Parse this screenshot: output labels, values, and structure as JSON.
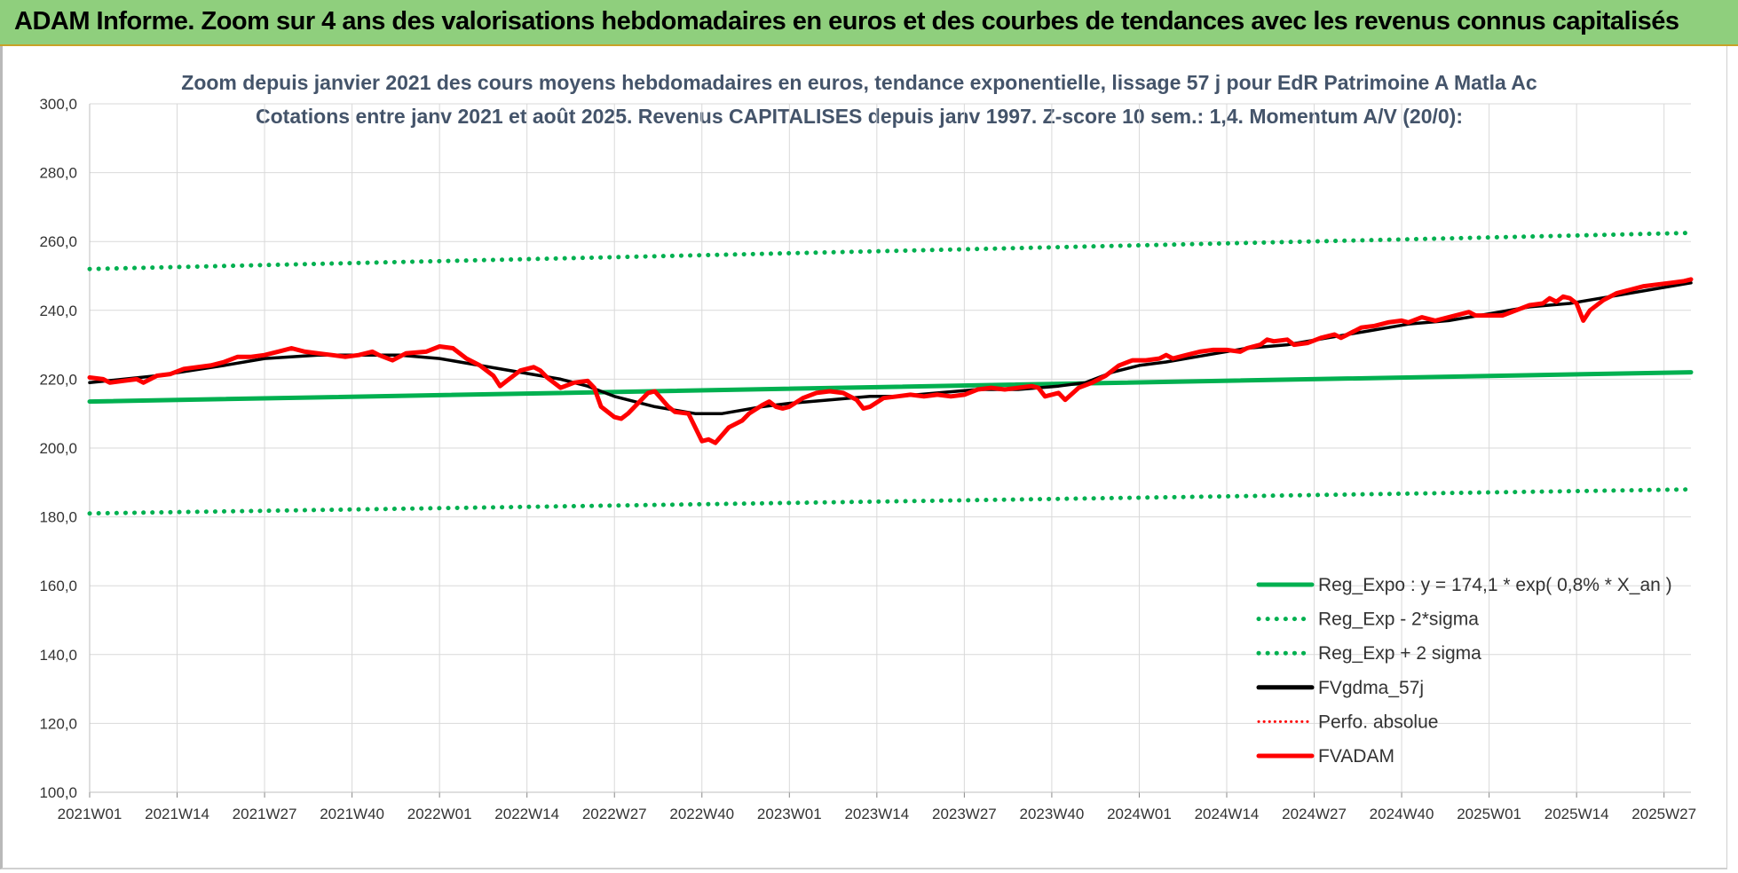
{
  "banner": {
    "title": "ADAM Informe. Zoom sur 4 ans des valorisations hebdomadaires en euros et des courbes de tendances avec les revenus connus capitalisés"
  },
  "chart_data": {
    "type": "line",
    "title": "Zoom depuis janvier 2021 des cours moyens hebdomadaires en euros, tendance exponentielle, lissage 57 j pour EdR Patrimoine A Matla Ac",
    "subtitle": "Cotations entre janv 2021 et août 2025. Revenus CAPITALISES depuis janv 1997. Z-score 10 sem.: 1,4. Momentum A/V (20/0):",
    "ylim": [
      100,
      300
    ],
    "yticks": [
      "300,0",
      "280,0",
      "260,0",
      "240,0",
      "220,0",
      "200,0",
      "180,0",
      "160,0",
      "140,0",
      "120,0",
      "100,0"
    ],
    "xticks": [
      {
        "label": "2021W01",
        "week": 0
      },
      {
        "label": "2021W14",
        "week": 13
      },
      {
        "label": "2021W27",
        "week": 26
      },
      {
        "label": "2021W40",
        "week": 39
      },
      {
        "label": "2022W01",
        "week": 52
      },
      {
        "label": "2022W14",
        "week": 65
      },
      {
        "label": "2022W27",
        "week": 78
      },
      {
        "label": "2022W40",
        "week": 91
      },
      {
        "label": "2023W01",
        "week": 104
      },
      {
        "label": "2023W14",
        "week": 117
      },
      {
        "label": "2023W27",
        "week": 130
      },
      {
        "label": "2023W40",
        "week": 143
      },
      {
        "label": "2024W01",
        "week": 156
      },
      {
        "label": "2024W14",
        "week": 169
      },
      {
        "label": "2024W27",
        "week": 182
      },
      {
        "label": "2024W40",
        "week": 195
      },
      {
        "label": "2025W01",
        "week": 208
      },
      {
        "label": "2025W14",
        "week": 221
      },
      {
        "label": "2025W27",
        "week": 234
      }
    ],
    "x_last_week": 238,
    "series": [
      {
        "name": "Reg_Expo : y = 174,1 * exp( 0,8% *  X_an )",
        "color": "#00b050",
        "style": "solid",
        "points": [
          [
            0,
            213.5
          ],
          [
            238,
            222.0
          ]
        ]
      },
      {
        "name": "Reg_Exp - 2*sigma",
        "color": "#00b050",
        "style": "dotted",
        "points": [
          [
            0,
            181.0
          ],
          [
            238,
            188.0
          ]
        ]
      },
      {
        "name": "Reg_Exp + 2 sigma",
        "color": "#00b050",
        "style": "dotted",
        "points": [
          [
            0,
            252.0
          ],
          [
            238,
            262.5
          ]
        ]
      },
      {
        "name": "FVgdma_57j",
        "color": "#000000",
        "style": "solid",
        "points": [
          [
            0,
            219
          ],
          [
            10,
            221
          ],
          [
            20,
            224
          ],
          [
            26,
            226
          ],
          [
            34,
            227
          ],
          [
            40,
            227
          ],
          [
            46,
            227
          ],
          [
            52,
            226
          ],
          [
            58,
            224
          ],
          [
            64,
            222
          ],
          [
            70,
            220
          ],
          [
            74,
            218
          ],
          [
            78,
            215
          ],
          [
            84,
            212
          ],
          [
            90,
            210
          ],
          [
            94,
            210
          ],
          [
            100,
            212
          ],
          [
            104,
            213
          ],
          [
            110,
            214
          ],
          [
            116,
            215
          ],
          [
            120,
            215
          ],
          [
            126,
            216
          ],
          [
            132,
            217
          ],
          [
            138,
            217
          ],
          [
            144,
            218
          ],
          [
            148,
            219
          ],
          [
            152,
            222
          ],
          [
            156,
            224
          ],
          [
            160,
            225
          ],
          [
            166,
            227
          ],
          [
            172,
            229
          ],
          [
            178,
            230
          ],
          [
            184,
            232
          ],
          [
            190,
            234
          ],
          [
            196,
            236
          ],
          [
            202,
            237
          ],
          [
            208,
            239
          ],
          [
            214,
            241
          ],
          [
            220,
            242
          ],
          [
            226,
            244
          ],
          [
            232,
            246
          ],
          [
            238,
            248
          ]
        ]
      },
      {
        "name": "Perfo. absolue",
        "color": "#ff0000",
        "style": "dotted",
        "points": []
      },
      {
        "name": "FVADAM",
        "color": "#ff0000",
        "style": "solid",
        "points": [
          [
            0,
            220.5
          ],
          [
            2,
            220
          ],
          [
            3,
            219
          ],
          [
            5,
            219.5
          ],
          [
            7,
            220
          ],
          [
            8,
            219
          ],
          [
            10,
            221
          ],
          [
            12,
            221.5
          ],
          [
            14,
            223
          ],
          [
            16,
            223.5
          ],
          [
            18,
            224
          ],
          [
            20,
            225
          ],
          [
            22,
            226.5
          ],
          [
            24,
            226.5
          ],
          [
            26,
            227
          ],
          [
            28,
            228
          ],
          [
            30,
            229
          ],
          [
            32,
            228
          ],
          [
            34,
            227.5
          ],
          [
            36,
            227
          ],
          [
            38,
            226.5
          ],
          [
            40,
            227
          ],
          [
            42,
            228
          ],
          [
            43,
            227
          ],
          [
            45,
            225.5
          ],
          [
            47,
            227.5
          ],
          [
            50,
            228
          ],
          [
            52,
            229.5
          ],
          [
            54,
            229
          ],
          [
            56,
            226
          ],
          [
            58,
            224
          ],
          [
            60,
            221
          ],
          [
            61,
            218
          ],
          [
            62,
            219.5
          ],
          [
            64,
            222.5
          ],
          [
            66,
            223.5
          ],
          [
            67,
            222.5
          ],
          [
            68,
            220.5
          ],
          [
            70,
            217.5
          ],
          [
            72,
            219
          ],
          [
            74,
            219.5
          ],
          [
            75,
            217.5
          ],
          [
            76,
            212
          ],
          [
            78,
            209
          ],
          [
            79,
            208.5
          ],
          [
            80,
            210
          ],
          [
            82,
            214
          ],
          [
            83,
            216
          ],
          [
            84,
            216.5
          ],
          [
            86,
            212
          ],
          [
            87,
            210.5
          ],
          [
            89,
            210
          ],
          [
            91,
            202
          ],
          [
            92,
            202.5
          ],
          [
            93,
            201.5
          ],
          [
            95,
            206
          ],
          [
            97,
            208
          ],
          [
            98,
            210
          ],
          [
            100,
            212.5
          ],
          [
            101,
            213.5
          ],
          [
            102,
            212
          ],
          [
            103,
            211.5
          ],
          [
            104,
            212
          ],
          [
            106,
            214.5
          ],
          [
            108,
            216
          ],
          [
            110,
            216.5
          ],
          [
            112,
            216
          ],
          [
            114,
            214
          ],
          [
            115,
            211.5
          ],
          [
            116,
            212
          ],
          [
            118,
            214.5
          ],
          [
            120,
            215
          ],
          [
            122,
            215.5
          ],
          [
            124,
            215
          ],
          [
            126,
            215.5
          ],
          [
            128,
            215
          ],
          [
            130,
            215.5
          ],
          [
            132,
            217
          ],
          [
            134,
            217.5
          ],
          [
            136,
            217
          ],
          [
            138,
            217.5
          ],
          [
            140,
            218
          ],
          [
            141,
            217.5
          ],
          [
            142,
            215
          ],
          [
            144,
            216
          ],
          [
            145,
            214
          ],
          [
            147,
            217.5
          ],
          [
            149,
            219
          ],
          [
            151,
            221
          ],
          [
            153,
            224
          ],
          [
            155,
            225.5
          ],
          [
            157,
            225.5
          ],
          [
            159,
            226
          ],
          [
            160,
            227
          ],
          [
            161,
            226
          ],
          [
            163,
            227
          ],
          [
            165,
            228
          ],
          [
            167,
            228.5
          ],
          [
            169,
            228.5
          ],
          [
            171,
            228
          ],
          [
            172,
            229
          ],
          [
            174,
            230
          ],
          [
            175,
            231.5
          ],
          [
            176,
            231
          ],
          [
            178,
            231.5
          ],
          [
            179,
            230
          ],
          [
            181,
            230.5
          ],
          [
            183,
            232
          ],
          [
            185,
            233
          ],
          [
            186,
            232
          ],
          [
            187,
            233
          ],
          [
            189,
            235
          ],
          [
            191,
            235.5
          ],
          [
            193,
            236.5
          ],
          [
            195,
            237
          ],
          [
            196,
            236.5
          ],
          [
            198,
            238
          ],
          [
            200,
            237
          ],
          [
            202,
            238
          ],
          [
            204,
            239
          ],
          [
            205,
            239.5
          ],
          [
            206,
            238.5
          ],
          [
            208,
            238.5
          ],
          [
            210,
            238.5
          ],
          [
            212,
            240
          ],
          [
            214,
            241.5
          ],
          [
            216,
            242
          ],
          [
            217,
            243.5
          ],
          [
            218,
            242.5
          ],
          [
            219,
            244
          ],
          [
            220,
            243.5
          ],
          [
            221,
            242
          ],
          [
            222,
            237
          ],
          [
            223,
            240
          ],
          [
            225,
            243
          ],
          [
            227,
            245
          ],
          [
            229,
            246
          ],
          [
            231,
            247
          ],
          [
            233,
            247.5
          ],
          [
            235,
            248
          ],
          [
            237,
            248.5
          ],
          [
            238,
            249
          ]
        ]
      }
    ]
  },
  "legend": {
    "items": [
      {
        "label": "Reg_Expo : y = 174,1 * exp( 0,8% *  X_an )",
        "color": "#00b050",
        "style": "solid"
      },
      {
        "label": "Reg_Exp - 2*sigma",
        "color": "#00b050",
        "style": "dotted"
      },
      {
        "label": "Reg_Exp + 2 sigma",
        "color": "#00b050",
        "style": "dotted"
      },
      {
        "label": "FVgdma_57j",
        "color": "#000000",
        "style": "solid"
      },
      {
        "label": "Perfo. absolue",
        "color": "#ff0000",
        "style": "dotted"
      },
      {
        "label": "FVADAM",
        "color": "#ff0000",
        "style": "solid"
      }
    ]
  }
}
